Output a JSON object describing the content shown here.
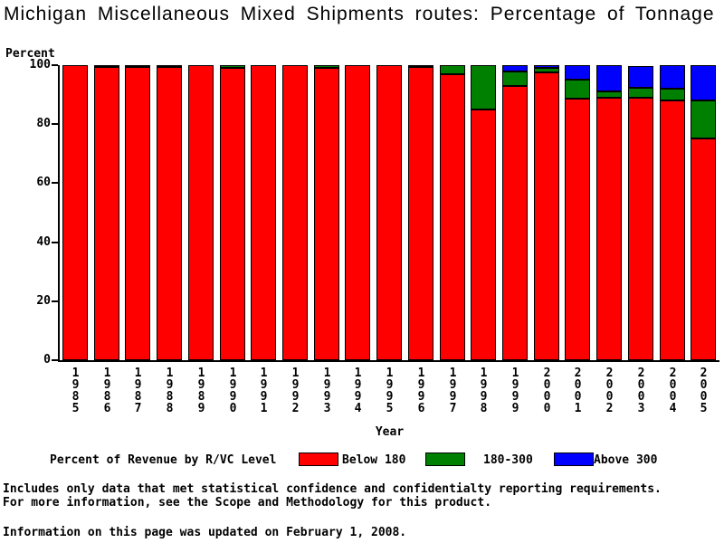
{
  "title": "Michigan Miscellaneous Mixed Shipments routes: Percentage of Tonnage",
  "chart_data": {
    "type": "bar",
    "stacked": true,
    "title": "Michigan Miscellaneous Mixed Shipments routes: Percentage of Tonnage",
    "ylabel": "Percent",
    "xlabel": "Year",
    "ylim": [
      0,
      100
    ],
    "yticks": [
      0,
      20,
      40,
      60,
      80,
      100
    ],
    "grid": false,
    "legend_title": "Percent of Revenue by R/VC Level",
    "legend_position": "bottom",
    "categories": [
      "1985",
      "1986",
      "1987",
      "1988",
      "1989",
      "1990",
      "1991",
      "1992",
      "1993",
      "1994",
      "1995",
      "1996",
      "1997",
      "1998",
      "1999",
      "2000",
      "2001",
      "2002",
      "2003",
      "2004",
      "2005"
    ],
    "series": [
      {
        "name": "Below 180",
        "color": "#ff0000",
        "values": [
          100,
          99.5,
          99.5,
          99.5,
          100,
          99,
          100,
          100,
          99,
          100,
          100,
          99.5,
          97,
          85,
          93,
          97.5,
          88.5,
          89,
          89,
          88,
          75
        ]
      },
      {
        "name": "180-300",
        "color": "#008000",
        "values": [
          0,
          0.5,
          0.5,
          0,
          0,
          1,
          0,
          0,
          1,
          0,
          0,
          0.5,
          3,
          15,
          5,
          1.5,
          6.5,
          2,
          3.5,
          4,
          13
        ]
      },
      {
        "name": "Above 300",
        "color": "#0000ff",
        "values": [
          0,
          0,
          0,
          0.5,
          0,
          0,
          0,
          0,
          0,
          0,
          0,
          0,
          0,
          0,
          2,
          1,
          5,
          9,
          7.5,
          8,
          12
        ]
      }
    ]
  },
  "notes": {
    "line1": "Includes only data that met statistical confidence and confidentialty reporting requirements.",
    "line2": "For more information, see the Scope and Methodology for this product.",
    "updated": "Information on this page was updated on February 1, 2008."
  }
}
